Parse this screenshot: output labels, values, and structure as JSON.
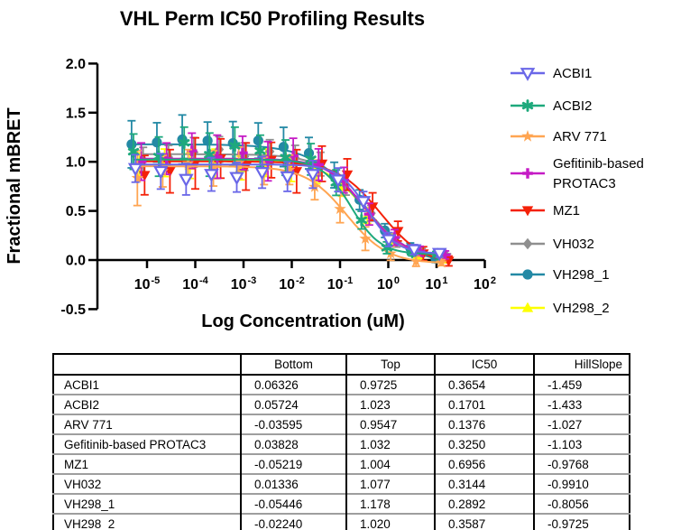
{
  "title": "VHL Perm IC50 Profiling Results",
  "chart_data": {
    "type": "scatter",
    "title": "VHL Perm IC50 Profiling Results",
    "xlabel": "Log Concentration (uM)",
    "ylabel": "Fractional mBRET",
    "x_scale": "log10",
    "x_tick_base": "10",
    "x_tick_exponents": [
      -5,
      -4,
      -3,
      -2,
      -1,
      0,
      1,
      2
    ],
    "y_ticks": [
      2.0,
      1.5,
      1.0,
      0.5,
      0.0,
      -0.5
    ],
    "ylim": [
      -0.5,
      2.0
    ],
    "xlim_log": [
      -6.0,
      2.0
    ],
    "grid": false,
    "legend_position": "right",
    "axis_color": "#000000",
    "fit_model": "Y = Bottom + (Top-Bottom)/(1+10^((log10(IC50)-log10(X))*HillSlope))",
    "dose_logs": [
      1.3,
      0.775,
      0.25,
      -0.275,
      -0.8,
      -1.325,
      -1.85,
      -2.375,
      -2.9,
      -3.425,
      -3.95,
      -4.475,
      -5.0
    ],
    "series": [
      {
        "name": "ACBI1",
        "color": "#6A67E8",
        "marker": "triangle-down-open",
        "log_offset": -0.24,
        "fit": {
          "bottom": 0.06326,
          "top": 0.9725,
          "ic50": 0.3654,
          "hill": -1.459
        },
        "jitter": [
          0.0,
          0.01,
          -0.02,
          0.02,
          -0.05,
          -0.08,
          -0.12,
          -0.08,
          -0.13,
          -0.1,
          -0.15,
          -0.07,
          -0.04
        ],
        "err": [
          0.04,
          0.05,
          0.07,
          0.1,
          0.12,
          0.14,
          0.15,
          0.16,
          0.15,
          0.17,
          0.16,
          0.18,
          0.14
        ]
      },
      {
        "name": "ACBI2",
        "color": "#1EA97C",
        "marker": "asterisk",
        "log_offset": -0.28,
        "fit": {
          "bottom": 0.05724,
          "top": 1.023,
          "ic50": 0.1701,
          "hill": -1.433
        },
        "jitter": [
          0.0,
          0.01,
          -0.01,
          0.03,
          0.02,
          0.06,
          0.03,
          0.09,
          0.14,
          0.05,
          0.17,
          0.03,
          0.08
        ],
        "err": [
          0.03,
          0.04,
          0.06,
          0.09,
          0.13,
          0.16,
          0.18,
          0.16,
          0.19,
          0.22,
          0.16,
          0.2,
          0.18
        ]
      },
      {
        "name": "ARV 771",
        "color": "#FFA552",
        "marker": "star",
        "log_offset": -0.2,
        "fit": {
          "bottom": -0.03595,
          "top": 0.9547,
          "ic50": 0.1376,
          "hill": -1.027
        },
        "jitter": [
          0.0,
          -0.01,
          0.0,
          -0.03,
          -0.02,
          -0.04,
          0.02,
          -0.03,
          0.04,
          -0.02,
          0.03,
          -0.05,
          -0.12
        ],
        "err": [
          0.03,
          0.05,
          0.07,
          0.12,
          0.14,
          0.13,
          0.15,
          0.14,
          0.16,
          0.18,
          0.14,
          0.16,
          0.28
        ]
      },
      {
        "name": "Gefitinib-based PROTAC3",
        "legend_lines": [
          "Gefitinib-based",
          "PROTAC3"
        ],
        "color": "#C51BC5",
        "marker": "plus",
        "log_offset": -0.12,
        "fit": {
          "bottom": 0.03828,
          "top": 1.032,
          "ic50": 0.325,
          "hill": -1.103
        },
        "jitter": [
          0.0,
          0.0,
          0.02,
          -0.01,
          0.03,
          0.02,
          0.05,
          -0.02,
          0.06,
          0.02,
          0.08,
          0.0,
          -0.03
        ],
        "err": [
          0.04,
          0.05,
          0.08,
          0.11,
          0.13,
          0.16,
          0.18,
          0.2,
          0.17,
          0.22,
          0.18,
          0.16,
          0.19
        ]
      },
      {
        "name": "MZ1",
        "color": "#F42108",
        "marker": "triangle-down",
        "log_offset": -0.05,
        "fit": {
          "bottom": -0.05219,
          "top": 1.004,
          "ic50": 0.6956,
          "hill": -0.9768
        },
        "jitter": [
          0.0,
          -0.01,
          0.02,
          -0.03,
          0.05,
          0.04,
          -0.08,
          0.02,
          -0.05,
          0.03,
          -0.02,
          -0.1,
          -0.14
        ],
        "err": [
          0.05,
          0.07,
          0.1,
          0.14,
          0.16,
          0.18,
          0.22,
          0.18,
          0.24,
          0.2,
          0.26,
          0.22,
          0.2
        ]
      },
      {
        "name": "VH032",
        "color": "#8F8F8F",
        "marker": "diamond",
        "log_offset": -0.08,
        "fit": {
          "bottom": 0.01336,
          "top": 1.077,
          "ic50": 0.3144,
          "hill": -0.991
        },
        "jitter": [
          0.0,
          0.0,
          -0.02,
          0.02,
          0.0,
          0.02,
          0.0,
          0.04,
          -0.02,
          0.05,
          0.02,
          -0.03,
          -0.06
        ],
        "err": [
          0.03,
          0.04,
          0.05,
          0.08,
          0.1,
          0.12,
          0.13,
          0.12,
          0.14,
          0.13,
          0.15,
          0.12,
          0.13
        ]
      },
      {
        "name": "VH298_1",
        "color": "#2389A5",
        "marker": "circle",
        "log_offset": -0.32,
        "fit": {
          "bottom": -0.05446,
          "top": 1.178,
          "ic50": 0.2892,
          "hill": -0.8056
        },
        "jitter": [
          0.0,
          0.01,
          -0.01,
          0.02,
          0.0,
          0.05,
          0.03,
          0.06,
          0.02,
          0.04,
          0.05,
          0.02,
          0.0
        ],
        "err": [
          0.04,
          0.05,
          0.07,
          0.1,
          0.13,
          0.16,
          0.2,
          0.18,
          0.22,
          0.19,
          0.25,
          0.2,
          0.24
        ]
      },
      {
        "name": "VH298_2",
        "color": "#FDFF00",
        "marker": "triangle-up",
        "log_offset": -0.16,
        "fit": {
          "bottom": -0.0224,
          "top": 1.02,
          "ic50": 0.3587,
          "hill": -0.9725
        },
        "jitter": [
          0.0,
          -0.02,
          0.0,
          -0.04,
          -0.02,
          -0.03,
          -0.06,
          -0.02,
          -0.08,
          -0.04,
          -0.06,
          -0.03,
          -0.05
        ],
        "err": [
          0.03,
          0.04,
          0.05,
          0.08,
          0.1,
          0.12,
          0.13,
          0.14,
          0.12,
          0.15,
          0.13,
          0.14,
          0.12
        ]
      }
    ]
  },
  "table": {
    "corner_label": "",
    "columns": [
      "Bottom",
      "Top",
      "IC50",
      "HillSlope"
    ],
    "rows": [
      {
        "name": "ACBI1",
        "bottom": "0.06326",
        "top": "0.9725",
        "ic50": "0.3654",
        "hillslope": "-1.459"
      },
      {
        "name": "ACBI2",
        "bottom": "0.05724",
        "top": "1.023",
        "ic50": "0.1701",
        "hillslope": "-1.433"
      },
      {
        "name": "ARV 771",
        "bottom": "-0.03595",
        "top": "0.9547",
        "ic50": "0.1376",
        "hillslope": "-1.027"
      },
      {
        "name": "Gefitinib-based PROTAC3",
        "bottom": "0.03828",
        "top": "1.032",
        "ic50": "0.3250",
        "hillslope": "-1.103"
      },
      {
        "name": "MZ1",
        "bottom": "-0.05219",
        "top": "1.004",
        "ic50": "0.6956",
        "hillslope": "-0.9768"
      },
      {
        "name": "VH032",
        "bottom": "0.01336",
        "top": "1.077",
        "ic50": "0.3144",
        "hillslope": "-0.9910"
      },
      {
        "name": "VH298_1",
        "bottom": "-0.05446",
        "top": "1.178",
        "ic50": "0.2892",
        "hillslope": "-0.8056"
      },
      {
        "name": "VH298_2",
        "bottom": "-0.02240",
        "top": "1.020",
        "ic50": "0.3587",
        "hillslope": "-0.9725"
      }
    ]
  }
}
